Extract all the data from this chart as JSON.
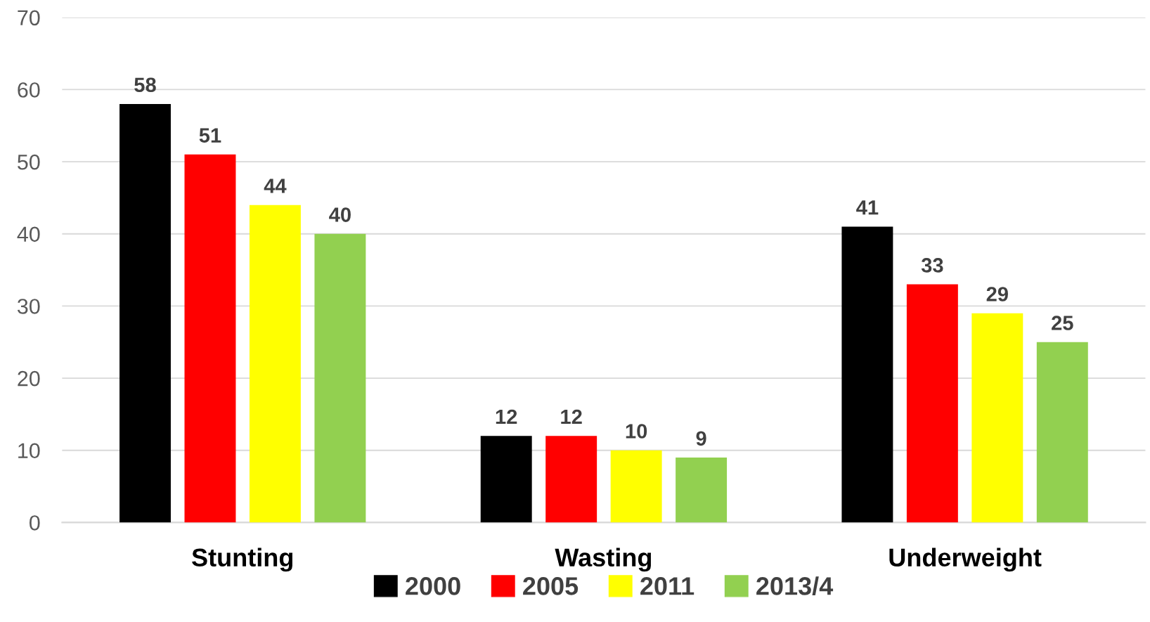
{
  "chart_data": {
    "type": "bar",
    "categories": [
      "Stunting",
      "Wasting",
      "Underweight"
    ],
    "series": [
      {
        "name": "2000",
        "color": "#000000",
        "values": [
          58,
          12,
          41
        ]
      },
      {
        "name": "2005",
        "color": "#ff0000",
        "values": [
          51,
          12,
          33
        ]
      },
      {
        "name": "2011",
        "color": "#ffff00",
        "values": [
          44,
          10,
          29
        ]
      },
      {
        "name": "2013/4",
        "color": "#92d050",
        "values": [
          40,
          9,
          25
        ]
      }
    ],
    "ylim": [
      0,
      70
    ],
    "yticks": [
      0,
      10,
      20,
      30,
      40,
      50,
      60,
      70
    ],
    "grid": "y",
    "legend": "bottom",
    "data_labels": true
  }
}
